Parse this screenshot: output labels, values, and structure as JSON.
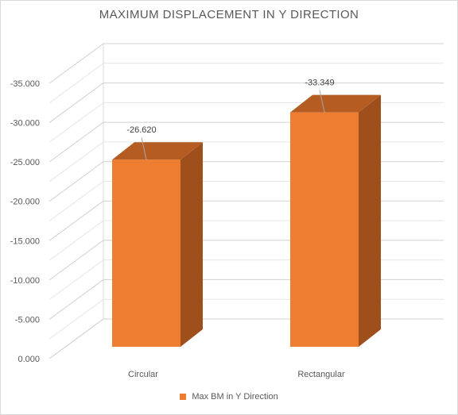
{
  "chart_data": {
    "type": "bar",
    "title": "MAXIMUM DISPLACEMENT IN Y DIRECTION",
    "xlabel": "",
    "ylabel": "",
    "categories": [
      "Circular",
      "Rectangular"
    ],
    "series": [
      {
        "name": "Max BM in Y Direction",
        "values": [
          -26.62,
          -33.349
        ],
        "data_labels": [
          "-26.620",
          "-33.349"
        ]
      }
    ],
    "ylim": [
      0,
      -35
    ],
    "yticks": [
      "0.000",
      "-5.000",
      "-10.000",
      "-15.000",
      "-20.000",
      "-25.000",
      "-30.000",
      "-35.000"
    ],
    "grid": true,
    "legend": "bottom",
    "style": "3d-column",
    "colors": {
      "bar_front": "#ED7D31",
      "bar_side": "#9E4F1C",
      "bar_top": "#B55C22"
    }
  }
}
